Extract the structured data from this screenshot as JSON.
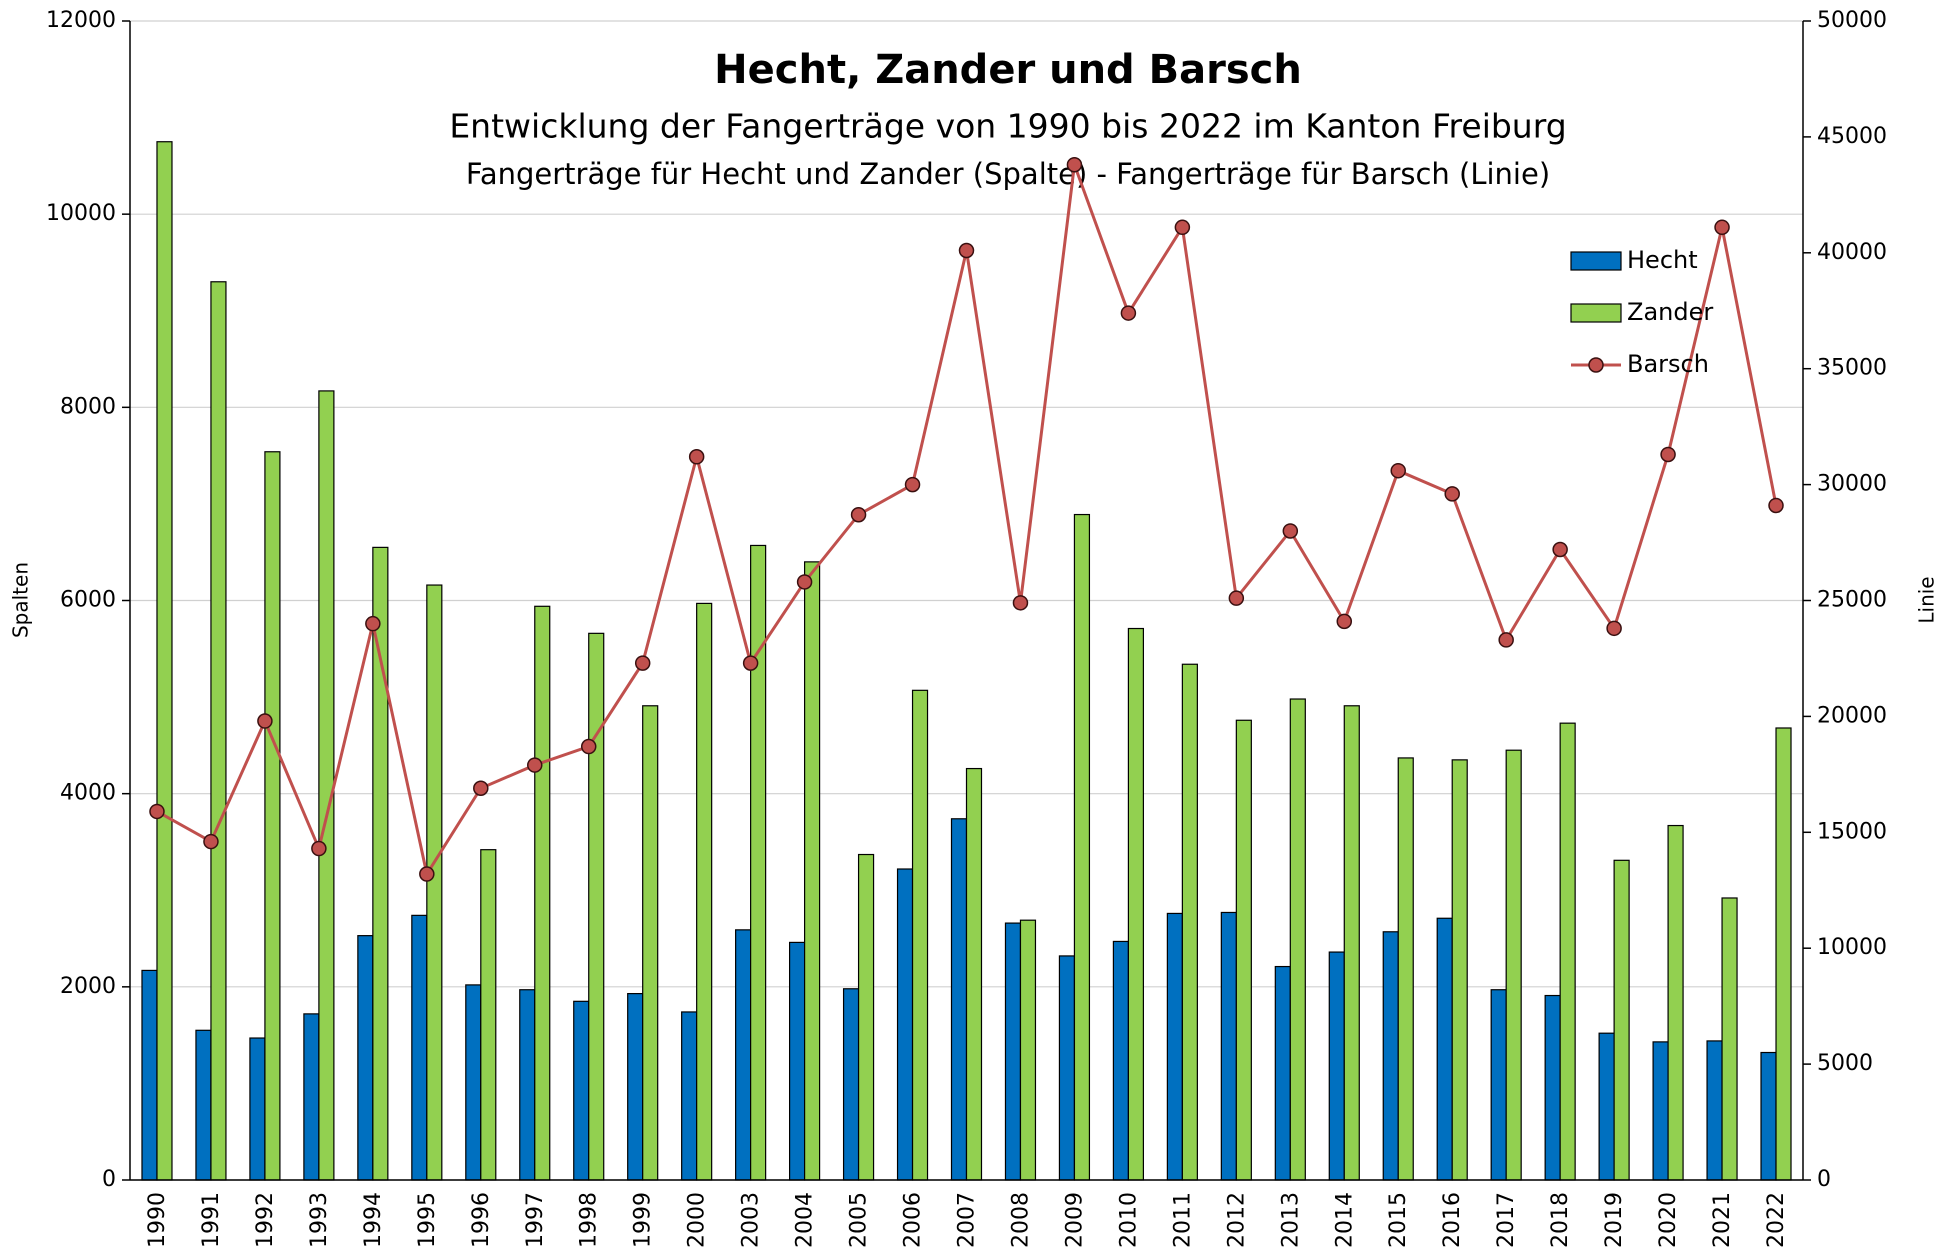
{
  "chart_data": {
    "type": "bar",
    "title": "Hecht, Zander und Barsch",
    "subtitle": "Entwicklung der Fangerträge von 1990 bis 2022 im Kanton Freiburg",
    "subtitle2": "Fangerträge für Hecht und Zander (Spalte) - Fangerträge für Barsch (Linie)",
    "ylabel": "Spalten",
    "y2label": "Linie",
    "categories": [
      "1990",
      "1991",
      "1992",
      "1993",
      "1994",
      "1995",
      "1996",
      "1997",
      "1998",
      "1999",
      "2000",
      "2003",
      "2004",
      "2005",
      "2006",
      "2007",
      "2008",
      "2009",
      "2010",
      "2011",
      "2012",
      "2013",
      "2014",
      "2015",
      "2016",
      "2017",
      "2018",
      "2019",
      "2020",
      "2021",
      "2022"
    ],
    "series": [
      {
        "name": "Hecht",
        "type": "bar",
        "color": "#0070c0",
        "values": [
          2170,
          1550,
          1470,
          1720,
          2530,
          2740,
          2020,
          1970,
          1850,
          1930,
          1740,
          2590,
          2460,
          1980,
          3220,
          3740,
          2660,
          2320,
          2470,
          2760,
          2770,
          2210,
          2360,
          2570,
          2710,
          1970,
          1910,
          1520,
          1430,
          1440,
          1320
        ]
      },
      {
        "name": "Zander",
        "type": "bar",
        "color": "#92d050",
        "values": [
          10750,
          9300,
          7540,
          8170,
          6550,
          6160,
          3420,
          5940,
          5660,
          4910,
          5970,
          6570,
          6400,
          3370,
          5070,
          4260,
          2690,
          6890,
          5710,
          5340,
          4760,
          4980,
          4910,
          4370,
          4350,
          4450,
          4730,
          3310,
          3670,
          2920,
          4680
        ]
      },
      {
        "name": "Barsch",
        "type": "line",
        "axis": "y2",
        "color": "#c0504d",
        "values": [
          15900,
          14600,
          19800,
          14300,
          24000,
          13200,
          16900,
          17900,
          18700,
          22300,
          31200,
          22300,
          25800,
          28700,
          30000,
          40100,
          24900,
          43800,
          37400,
          41100,
          25100,
          28000,
          24100,
          30600,
          29600,
          23300,
          27200,
          23800,
          31300,
          41100,
          29100
        ]
      }
    ],
    "ylim": [
      0,
      12000
    ],
    "yticks": [
      0,
      2000,
      4000,
      6000,
      8000,
      10000,
      12000
    ],
    "y2lim": [
      0,
      50000
    ],
    "y2ticks": [
      0,
      5000,
      10000,
      15000,
      20000,
      25000,
      30000,
      35000,
      40000,
      45000,
      50000
    ],
    "grid": true,
    "legend": "upper right"
  }
}
